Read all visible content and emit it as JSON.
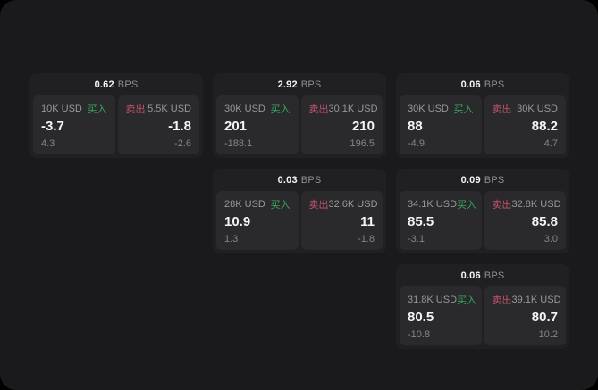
{
  "labels": {
    "buy": "买入",
    "sell": "卖出",
    "bps_unit": "BPS"
  },
  "colors": {
    "page_background": "#000000",
    "window_background": "#1a1a1c",
    "card_background": "#202022",
    "panel_background": "#2a2a2c",
    "text_primary": "#f4f4f5",
    "text_secondary": "#98989d",
    "text_muted": "#85858a",
    "buy_green": "#36a85c",
    "sell_red": "#c65270"
  },
  "cards": [
    {
      "bps": "0.62",
      "buy": {
        "amount": "10K USD",
        "value": "-3.7",
        "sub": "4.3"
      },
      "sell": {
        "amount": "5.5K USD",
        "value": "-1.8",
        "sub": "-2.6"
      }
    },
    {
      "bps": "2.92",
      "buy": {
        "amount": "30K USD",
        "value": "201",
        "sub": "-188.1"
      },
      "sell": {
        "amount": "30.1K USD",
        "value": "210",
        "sub": "196.5"
      }
    },
    {
      "bps": "0.06",
      "buy": {
        "amount": "30K USD",
        "value": "88",
        "sub": "-4.9"
      },
      "sell": {
        "amount": "30K USD",
        "value": "88.2",
        "sub": "4.7"
      }
    },
    {
      "bps": "0.03",
      "buy": {
        "amount": "28K USD",
        "value": "10.9",
        "sub": "1.3"
      },
      "sell": {
        "amount": "32.6K USD",
        "value": "11",
        "sub": "-1.8"
      }
    },
    {
      "bps": "0.09",
      "buy": {
        "amount": "34.1K USD",
        "value": "85.5",
        "sub": "-3.1"
      },
      "sell": {
        "amount": "32.8K USD",
        "value": "85.8",
        "sub": "3.0"
      }
    },
    {
      "bps": "0.06",
      "buy": {
        "amount": "31.8K USD",
        "value": "80.5",
        "sub": "-10.8"
      },
      "sell": {
        "amount": "39.1K USD",
        "value": "80.7",
        "sub": "10.2"
      }
    }
  ]
}
